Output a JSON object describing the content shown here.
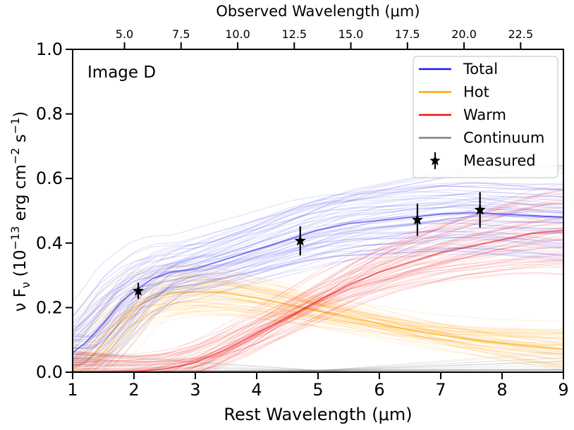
{
  "chart_data": {
    "type": "line",
    "title": "",
    "annotation": "Image D",
    "xlabel": "Rest Wavelength (μm)",
    "ylabel_parts": [
      "ν F",
      "ν",
      " (10",
      "−13",
      " erg cm",
      "−2",
      " s",
      "−1",
      ")"
    ],
    "top_xlabel": "Observed Wavelength (μm)",
    "xlim": [
      1,
      9
    ],
    "ylim": [
      0,
      1
    ],
    "xticks": [
      1,
      2,
      3,
      4,
      5,
      6,
      7,
      8,
      9
    ],
    "yticks": [
      "0.0",
      "0.2",
      "0.4",
      "0.6",
      "0.8",
      "1.0"
    ],
    "ytick_values": [
      0,
      0.2,
      0.4,
      0.6,
      0.8,
      1.0
    ],
    "top_xticks": [
      "5.0",
      "7.5",
      "10.0",
      "12.5",
      "15.0",
      "17.5",
      "20.0",
      "22.5"
    ],
    "top_xtick_values": [
      5.0,
      7.5,
      10.0,
      12.5,
      15.0,
      17.5,
      20.0,
      22.5
    ],
    "observed_per_rest": 2.71,
    "colors": {
      "total": "#1a1aee",
      "hot": "#ffa500",
      "warm": "#ee1111",
      "continuum": "#808080"
    },
    "series": [
      {
        "name": "Total",
        "key": "total",
        "description": "median model",
        "x": [
          1.0,
          1.2,
          1.5,
          1.8,
          2.0,
          2.3,
          2.6,
          3.0,
          3.5,
          4.0,
          4.5,
          5.0,
          5.5,
          6.0,
          6.5,
          7.0,
          7.5,
          8.0,
          8.5,
          9.0
        ],
        "y": [
          0.06,
          0.09,
          0.15,
          0.22,
          0.25,
          0.29,
          0.31,
          0.32,
          0.35,
          0.38,
          0.41,
          0.44,
          0.46,
          0.47,
          0.48,
          0.49,
          0.495,
          0.49,
          0.485,
          0.48
        ]
      },
      {
        "name": "Hot",
        "key": "hot",
        "description": "median model",
        "x": [
          1.0,
          1.2,
          1.5,
          1.8,
          2.0,
          2.3,
          2.6,
          3.0,
          3.5,
          4.0,
          4.5,
          5.0,
          5.5,
          6.0,
          6.5,
          7.0,
          7.5,
          8.0,
          8.5,
          9.0
        ],
        "y": [
          0.01,
          0.03,
          0.09,
          0.16,
          0.2,
          0.23,
          0.245,
          0.25,
          0.245,
          0.23,
          0.21,
          0.19,
          0.17,
          0.15,
          0.13,
          0.115,
          0.1,
          0.09,
          0.08,
          0.07
        ]
      },
      {
        "name": "Warm",
        "key": "warm",
        "description": "median model",
        "x": [
          1.0,
          1.5,
          2.0,
          2.5,
          3.0,
          3.5,
          4.0,
          4.5,
          5.0,
          5.5,
          6.0,
          6.5,
          7.0,
          7.5,
          8.0,
          8.5,
          9.0
        ],
        "y": [
          0.0,
          0.0,
          0.002,
          0.01,
          0.03,
          0.07,
          0.12,
          0.17,
          0.22,
          0.27,
          0.31,
          0.34,
          0.37,
          0.39,
          0.41,
          0.43,
          0.44
        ]
      },
      {
        "name": "Continuum",
        "key": "continuum",
        "description": "median model",
        "x": [
          1.0,
          3.0,
          5.0,
          7.0,
          9.0
        ],
        "y": [
          0.003,
          0.004,
          0.005,
          0.006,
          0.007
        ]
      }
    ],
    "measured": {
      "name": "Measured",
      "x": [
        2.07,
        4.71,
        6.62,
        7.64
      ],
      "y": [
        0.252,
        0.407,
        0.472,
        0.503
      ],
      "yerr": [
        0.025,
        0.045,
        0.05,
        0.055
      ]
    },
    "legend": {
      "position": "top-right",
      "entries": [
        {
          "label": "Total",
          "key": "total",
          "marker": "line"
        },
        {
          "label": "Hot",
          "key": "hot",
          "marker": "line"
        },
        {
          "label": "Warm",
          "key": "warm",
          "marker": "line"
        },
        {
          "label": "Continuum",
          "key": "continuum",
          "marker": "line"
        },
        {
          "label": "Measured",
          "key": "measured",
          "marker": "star"
        }
      ]
    }
  }
}
